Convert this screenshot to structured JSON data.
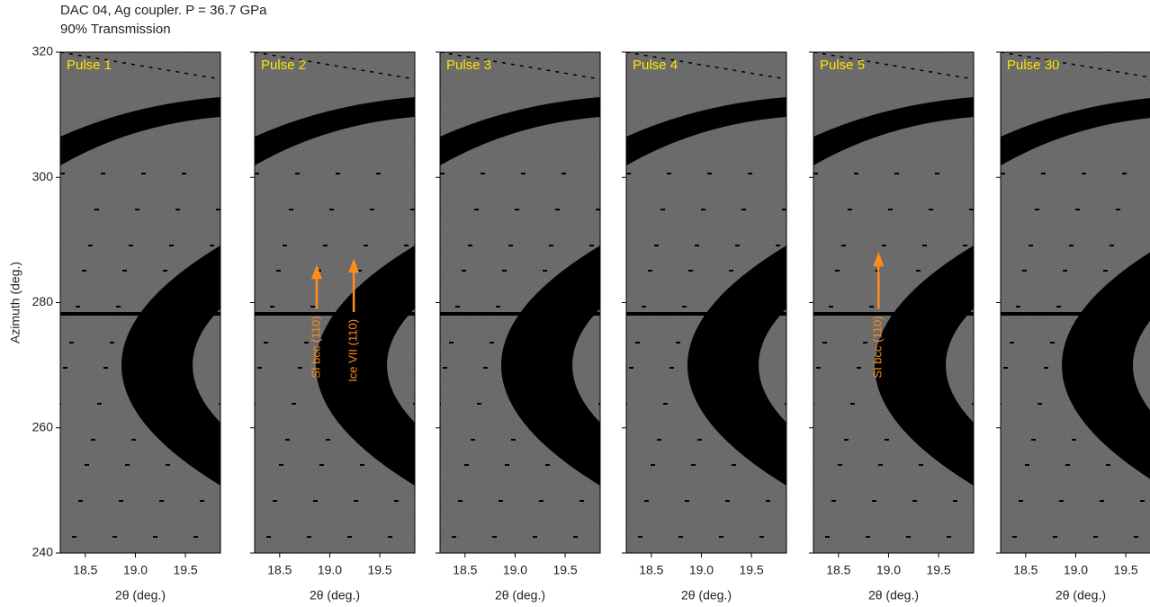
{
  "title": "DAC 04, Ag coupler. P = 36.7 GPa",
  "subtitle": "90% Transmission",
  "chart_data": [
    {
      "type": "image",
      "title": "Pulse 1",
      "xlabel": "2θ (deg.)",
      "ylabel": "Azimuth (deg.)",
      "xlim": [
        18.25,
        19.85
      ],
      "xticks": [
        18.5,
        {
          "value": 19,
          "label": "19.0"
        },
        19.5
      ],
      "ylim": [
        240,
        320
      ],
      "yticks": [
        240,
        260,
        280,
        300,
        320
      ]
    },
    {
      "type": "image",
      "title": "Pulse 2",
      "xlabel": "2θ (deg.)",
      "xlim": [
        18.25,
        19.85
      ],
      "xticks": [
        18.5,
        {
          "value": 19,
          "label": "19.0"
        },
        19.5
      ],
      "ylim": [
        240,
        320
      ],
      "annotations": [
        {
          "text": "SI bcc (110)",
          "x": 18.87,
          "y": [
            279,
            285.5
          ],
          "color": "#ff8c1a"
        },
        {
          "text": "Ice VII (110)",
          "x": 19.24,
          "y": [
            278.5,
            286.5
          ],
          "color": "#ff8c1a"
        }
      ]
    },
    {
      "type": "image",
      "title": "Pulse 3",
      "xlabel": "2θ (deg.)",
      "xlim": [
        18.25,
        19.85
      ],
      "xticks": [
        18.5,
        {
          "value": 19,
          "label": "19.0"
        },
        19.5
      ],
      "ylim": [
        240,
        320
      ]
    },
    {
      "type": "image",
      "title": "Pulse 4",
      "xlabel": "2θ (deg.)",
      "xlim": [
        18.25,
        19.85
      ],
      "xticks": [
        18.5,
        {
          "value": 19,
          "label": "19.0"
        },
        19.5
      ],
      "ylim": [
        240,
        320
      ]
    },
    {
      "type": "image",
      "title": "Pulse 5",
      "xlabel": "2θ (deg.)",
      "xlim": [
        18.25,
        19.85
      ],
      "xticks": [
        18.5,
        {
          "value": 19,
          "label": "19.0"
        },
        19.5
      ],
      "ylim": [
        240,
        320
      ],
      "annotations": [
        {
          "text": "SI bcc (110)",
          "x": 18.9,
          "y": [
            279,
            287.5
          ],
          "color": "#ff8c1a"
        }
      ]
    },
    {
      "type": "image",
      "title": "Pulse 30",
      "xlabel": "2θ (deg.)",
      "xlim": [
        18.25,
        19.85
      ],
      "xticks": [
        18.5,
        {
          "value": 19,
          "label": "19.0"
        },
        19.5
      ],
      "ylim": [
        240,
        320
      ]
    }
  ]
}
